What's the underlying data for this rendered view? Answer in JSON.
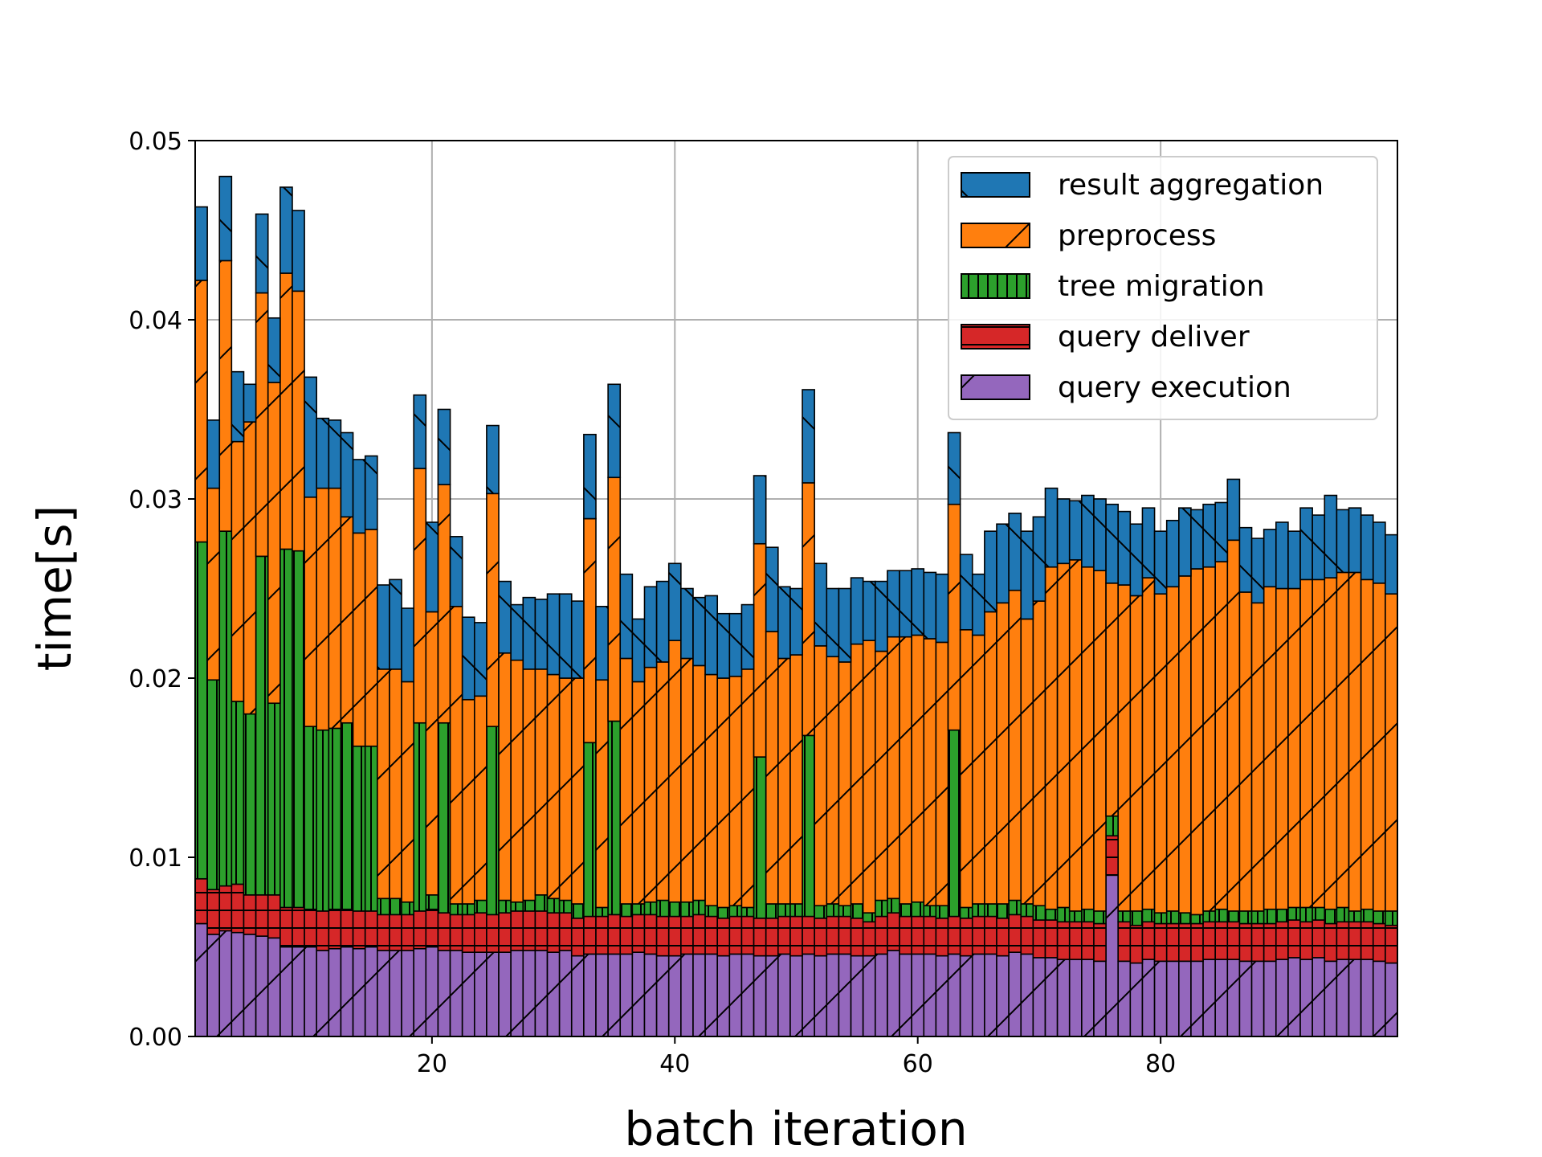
{
  "chart_data": {
    "type": "bar",
    "stacked": true,
    "xlabel": "batch iteration",
    "ylabel": "time[s]",
    "xlim": [
      0.5,
      99.5
    ],
    "ylim": [
      0,
      0.05
    ],
    "x_ticks": [
      20,
      40,
      60,
      80
    ],
    "x_tick_labels": [
      "20",
      "40",
      "60",
      "80"
    ],
    "y_ticks": [
      0.0,
      0.01,
      0.02,
      0.03,
      0.04,
      0.05
    ],
    "y_tick_labels": [
      "0.00",
      "0.01",
      "0.02",
      "0.03",
      "0.04",
      "0.05"
    ],
    "grid": true,
    "legend_position": "top-right",
    "x": [
      1,
      2,
      3,
      4,
      5,
      6,
      7,
      8,
      9,
      10,
      11,
      12,
      13,
      14,
      15,
      16,
      17,
      18,
      19,
      20,
      21,
      22,
      23,
      24,
      25,
      26,
      27,
      28,
      29,
      30,
      31,
      32,
      33,
      34,
      35,
      36,
      37,
      38,
      39,
      40,
      41,
      42,
      43,
      44,
      45,
      46,
      47,
      48,
      49,
      50,
      51,
      52,
      53,
      54,
      55,
      56,
      57,
      58,
      59,
      60,
      61,
      62,
      63,
      64,
      65,
      66,
      67,
      68,
      69,
      70,
      71,
      72,
      73,
      74,
      75,
      76,
      77,
      78,
      79,
      80,
      81,
      82,
      83,
      84,
      85,
      86,
      87,
      88,
      89,
      90,
      91,
      92,
      93,
      94,
      95,
      96,
      97,
      98,
      99
    ],
    "series": [
      {
        "name": "query execution",
        "color": "#9467bd",
        "hatch": "/",
        "values": [
          0.0063,
          0.0057,
          0.0059,
          0.0058,
          0.0057,
          0.0056,
          0.0055,
          0.005,
          0.005,
          0.005,
          0.0048,
          0.0049,
          0.005,
          0.0049,
          0.005,
          0.0048,
          0.0048,
          0.0048,
          0.0049,
          0.005,
          0.0048,
          0.0048,
          0.0047,
          0.0047,
          0.0047,
          0.0047,
          0.0048,
          0.0048,
          0.0048,
          0.0047,
          0.0048,
          0.0045,
          0.0046,
          0.0046,
          0.0046,
          0.0046,
          0.0047,
          0.0046,
          0.0045,
          0.0045,
          0.0046,
          0.0046,
          0.0046,
          0.0045,
          0.0046,
          0.0046,
          0.0045,
          0.0045,
          0.0046,
          0.0045,
          0.0046,
          0.0045,
          0.0046,
          0.0046,
          0.0045,
          0.0045,
          0.0046,
          0.0048,
          0.0046,
          0.0046,
          0.0046,
          0.0045,
          0.0046,
          0.0045,
          0.0046,
          0.0046,
          0.0045,
          0.0047,
          0.0046,
          0.0044,
          0.0044,
          0.0043,
          0.0043,
          0.0043,
          0.0042,
          0.009,
          0.0042,
          0.0041,
          0.0043,
          0.0042,
          0.0042,
          0.0042,
          0.0042,
          0.0043,
          0.0043,
          0.0043,
          0.0042,
          0.0042,
          0.0042,
          0.0043,
          0.0044,
          0.0043,
          0.0044,
          0.0042,
          0.0043,
          0.0043,
          0.0043,
          0.0042,
          0.0041
        ]
      },
      {
        "name": "query deliver",
        "color": "#d62728",
        "hatch": "-",
        "values": [
          0.0025,
          0.0025,
          0.0025,
          0.0027,
          0.0022,
          0.0023,
          0.0024,
          0.0022,
          0.0022,
          0.0021,
          0.0022,
          0.0022,
          0.0021,
          0.0021,
          0.002,
          0.002,
          0.002,
          0.002,
          0.0021,
          0.0021,
          0.0021,
          0.002,
          0.0021,
          0.0022,
          0.0021,
          0.0022,
          0.0022,
          0.0022,
          0.0022,
          0.0022,
          0.0021,
          0.0021,
          0.0021,
          0.0021,
          0.0022,
          0.0021,
          0.0021,
          0.0022,
          0.0022,
          0.0022,
          0.0021,
          0.0022,
          0.0021,
          0.0021,
          0.0021,
          0.0021,
          0.0021,
          0.0021,
          0.0021,
          0.0022,
          0.0021,
          0.0021,
          0.0021,
          0.0021,
          0.0021,
          0.0019,
          0.0021,
          0.0021,
          0.0021,
          0.0021,
          0.0021,
          0.0021,
          0.0021,
          0.0021,
          0.0021,
          0.0021,
          0.0021,
          0.0021,
          0.0021,
          0.0021,
          0.0021,
          0.0021,
          0.0021,
          0.0021,
          0.0021,
          0.0022,
          0.0022,
          0.0021,
          0.0021,
          0.0021,
          0.0021,
          0.0021,
          0.0021,
          0.0021,
          0.0021,
          0.0021,
          0.0021,
          0.0021,
          0.0021,
          0.0021,
          0.0021,
          0.0021,
          0.0021,
          0.0021,
          0.0021,
          0.0021,
          0.0021,
          0.0021,
          0.0021
        ]
      },
      {
        "name": "tree migration",
        "color": "#2ca02c",
        "hatch": "|",
        "values": [
          0.0188,
          0.0117,
          0.0198,
          0.0102,
          0.0101,
          0.0189,
          0.0107,
          0.02,
          0.0199,
          0.0102,
          0.0101,
          0.0101,
          0.0104,
          0.0092,
          0.0092,
          0.0009,
          0.0009,
          0.0007,
          0.0105,
          0.0008,
          0.0106,
          0.0006,
          0.0006,
          0.0007,
          0.0105,
          0.0007,
          0.0005,
          0.0006,
          0.0009,
          0.0008,
          0.0007,
          0.0008,
          0.0097,
          0.0005,
          0.0108,
          0.0007,
          0.0006,
          0.0007,
          0.0009,
          0.0008,
          0.0008,
          0.0008,
          0.0006,
          0.0006,
          0.0006,
          0.0005,
          0.009,
          0.0008,
          0.0007,
          0.0007,
          0.0101,
          0.0007,
          0.0007,
          0.0006,
          0.0008,
          0.0005,
          0.0009,
          0.0008,
          0.0007,
          0.0008,
          0.0006,
          0.0007,
          0.0104,
          0.0006,
          0.0007,
          0.0007,
          0.0008,
          0.0008,
          0.0007,
          0.0008,
          0.0006,
          0.0008,
          0.0006,
          0.0007,
          0.0007,
          0.0011,
          0.0006,
          0.0008,
          0.0007,
          0.0006,
          0.0007,
          0.0006,
          0.0005,
          0.0006,
          0.0007,
          0.0006,
          0.0007,
          0.0007,
          0.0008,
          0.0007,
          0.0007,
          0.0008,
          0.0007,
          0.0008,
          0.0008,
          0.0006,
          0.0007,
          0.0007,
          0.0008
        ]
      },
      {
        "name": "preprocess",
        "color": "#ff7f0e",
        "hatch": "//",
        "values": [
          0.0146,
          0.0107,
          0.0151,
          0.0145,
          0.0163,
          0.0147,
          0.0179,
          0.0154,
          0.0145,
          0.0128,
          0.0135,
          0.0134,
          0.0115,
          0.0119,
          0.0121,
          0.0128,
          0.0128,
          0.0123,
          0.0142,
          0.0158,
          0.0133,
          0.0166,
          0.0114,
          0.0114,
          0.013,
          0.0138,
          0.0135,
          0.0129,
          0.0126,
          0.0125,
          0.0124,
          0.0126,
          0.0125,
          0.0127,
          0.0136,
          0.0137,
          0.0124,
          0.0131,
          0.0133,
          0.0146,
          0.0136,
          0.0131,
          0.0129,
          0.0128,
          0.0128,
          0.0133,
          0.0119,
          0.0152,
          0.0137,
          0.0139,
          0.0141,
          0.0145,
          0.0138,
          0.0136,
          0.0145,
          0.0152,
          0.0139,
          0.0146,
          0.0149,
          0.0149,
          0.0149,
          0.0147,
          0.0126,
          0.0155,
          0.015,
          0.0163,
          0.0168,
          0.0173,
          0.0159,
          0.017,
          0.0191,
          0.0192,
          0.0196,
          0.0191,
          0.019,
          0.013,
          0.0182,
          0.0176,
          0.0185,
          0.0178,
          0.0181,
          0.0188,
          0.0193,
          0.0192,
          0.0194,
          0.0207,
          0.0178,
          0.0172,
          0.018,
          0.0179,
          0.0178,
          0.0183,
          0.0183,
          0.0185,
          0.0187,
          0.0189,
          0.0184,
          0.0183,
          0.0177
        ]
      },
      {
        "name": "result aggregation",
        "color": "#1f77b4",
        "hatch": "\\",
        "values": [
          0.0041,
          0.0038,
          0.0047,
          0.0039,
          0.0021,
          0.0044,
          0.0036,
          0.0048,
          0.0045,
          0.0067,
          0.0039,
          0.0038,
          0.0047,
          0.0041,
          0.0041,
          0.0047,
          0.005,
          0.0041,
          0.0041,
          0.005,
          0.0042,
          0.0039,
          0.0046,
          0.0041,
          0.0038,
          0.004,
          0.0031,
          0.004,
          0.0039,
          0.0045,
          0.0047,
          0.0043,
          0.0047,
          0.0041,
          0.0052,
          0.0047,
          0.0035,
          0.0045,
          0.0045,
          0.0043,
          0.0039,
          0.0038,
          0.0044,
          0.0036,
          0.0035,
          0.0036,
          0.0038,
          0.0047,
          0.004,
          0.0037,
          0.0052,
          0.0046,
          0.0038,
          0.0041,
          0.0037,
          0.0033,
          0.0039,
          0.0037,
          0.0037,
          0.0037,
          0.0037,
          0.0038,
          0.004,
          0.0042,
          0.0034,
          0.0045,
          0.0044,
          0.0043,
          0.0049,
          0.0047,
          0.0044,
          0.0036,
          0.0033,
          0.004,
          0.004,
          0.0044,
          0.0041,
          0.004,
          0.0039,
          0.0035,
          0.0037,
          0.0038,
          0.0033,
          0.0035,
          0.0033,
          0.0034,
          0.0036,
          0.0036,
          0.0032,
          0.0037,
          0.0032,
          0.004,
          0.0036,
          0.0046,
          0.0035,
          0.0036,
          0.0036,
          0.0034,
          0.0033
        ]
      }
    ]
  }
}
